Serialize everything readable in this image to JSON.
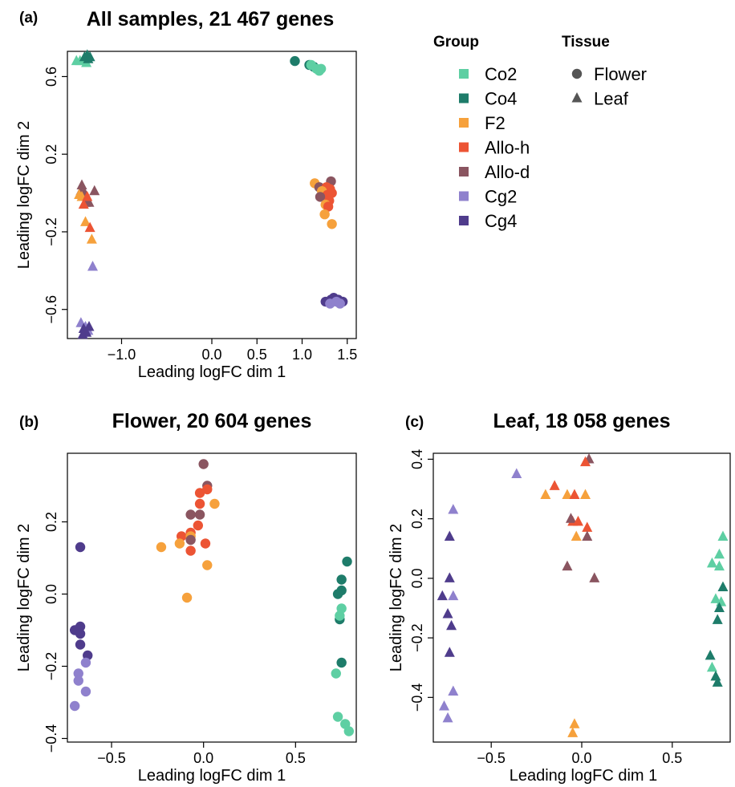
{
  "colors": {
    "Co2": "#5ecfa3",
    "Co4": "#1e7c6a",
    "F2": "#f6a13c",
    "Allo-h": "#ec5434",
    "Allo-d": "#8a5560",
    "Cg2": "#8f81cd",
    "Cg4": "#4f3c8c"
  },
  "legend": {
    "group_title": "Group",
    "groups": [
      "Co2",
      "Co4",
      "F2",
      "Allo-h",
      "Allo-d",
      "Cg2",
      "Cg4"
    ],
    "tissue_title": "Tissue",
    "tissues": [
      {
        "label": "Flower",
        "shape": "circle"
      },
      {
        "label": "Leaf",
        "shape": "triangle"
      }
    ]
  },
  "chart_data": [
    {
      "type": "scatter",
      "panel_label": "(a)",
      "title": "All samples, 21 467 genes",
      "xlabel": "Leading logFC dim 1",
      "ylabel": "Leading logFC dim 2",
      "xlim": [
        -1.6,
        1.6
      ],
      "ylim": [
        -0.75,
        0.73
      ],
      "xticks": [
        -1.0,
        0.0,
        0.5,
        1.0,
        1.5
      ],
      "xtick_labels": [
        "−1.0",
        "0.0",
        "0.5",
        "1.0",
        "1.5"
      ],
      "yticks": [
        -0.6,
        -0.2,
        0.2,
        0.6
      ],
      "ytick_labels": [
        "−0.6",
        "−0.2",
        "0.2",
        "0.6"
      ],
      "points": [
        {
          "g": "Co2",
          "s": "triangle",
          "x": -1.5,
          "y": 0.68
        },
        {
          "g": "Co2",
          "s": "triangle",
          "x": -1.46,
          "y": 0.68
        },
        {
          "g": "Co2",
          "s": "triangle",
          "x": -1.42,
          "y": 0.69
        },
        {
          "g": "Co2",
          "s": "triangle",
          "x": -1.39,
          "y": 0.67
        },
        {
          "g": "Co4",
          "s": "triangle",
          "x": -1.41,
          "y": 0.7
        },
        {
          "g": "Co4",
          "s": "triangle",
          "x": -1.38,
          "y": 0.71
        },
        {
          "g": "Co4",
          "s": "triangle",
          "x": -1.35,
          "y": 0.7
        },
        {
          "g": "Co4",
          "s": "triangle",
          "x": -1.37,
          "y": 0.69
        },
        {
          "g": "Allo-d",
          "s": "triangle",
          "x": -1.44,
          "y": 0.04
        },
        {
          "g": "Allo-d",
          "s": "triangle",
          "x": -1.45,
          "y": 0.01
        },
        {
          "g": "Allo-d",
          "s": "triangle",
          "x": -1.41,
          "y": 0.0
        },
        {
          "g": "Allo-d",
          "s": "triangle",
          "x": -1.3,
          "y": 0.01
        },
        {
          "g": "Allo-d",
          "s": "triangle",
          "x": -1.4,
          "y": -0.05
        },
        {
          "g": "Allo-d",
          "s": "triangle",
          "x": -1.36,
          "y": -0.05
        },
        {
          "g": "F2",
          "s": "triangle",
          "x": -1.47,
          "y": -0.01
        },
        {
          "g": "F2",
          "s": "triangle",
          "x": -1.44,
          "y": -0.02
        },
        {
          "g": "F2",
          "s": "triangle",
          "x": -1.4,
          "y": -0.15
        },
        {
          "g": "F2",
          "s": "triangle",
          "x": -1.33,
          "y": -0.24
        },
        {
          "g": "Allo-h",
          "s": "triangle",
          "x": -1.38,
          "y": -0.02
        },
        {
          "g": "Allo-h",
          "s": "triangle",
          "x": -1.42,
          "y": -0.06
        },
        {
          "g": "Allo-h",
          "s": "triangle",
          "x": -1.35,
          "y": -0.18
        },
        {
          "g": "Cg2",
          "s": "triangle",
          "x": -1.32,
          "y": -0.38
        },
        {
          "g": "Cg2",
          "s": "triangle",
          "x": -1.45,
          "y": -0.67
        },
        {
          "g": "Cg2",
          "s": "triangle",
          "x": -1.4,
          "y": -0.69
        },
        {
          "g": "Cg2",
          "s": "triangle",
          "x": -1.37,
          "y": -0.71
        },
        {
          "g": "Cg4",
          "s": "triangle",
          "x": -1.42,
          "y": -0.7
        },
        {
          "g": "Cg4",
          "s": "triangle",
          "x": -1.39,
          "y": -0.72
        },
        {
          "g": "Cg4",
          "s": "triangle",
          "x": -1.36,
          "y": -0.69
        },
        {
          "g": "Cg4",
          "s": "triangle",
          "x": -1.43,
          "y": -0.73
        },
        {
          "g": "Co4",
          "s": "circle",
          "x": 0.92,
          "y": 0.68
        },
        {
          "g": "Co4",
          "s": "circle",
          "x": 1.08,
          "y": 0.66
        },
        {
          "g": "Co4",
          "s": "circle",
          "x": 1.13,
          "y": 0.65
        },
        {
          "g": "Co2",
          "s": "circle",
          "x": 1.1,
          "y": 0.66
        },
        {
          "g": "Co2",
          "s": "circle",
          "x": 1.16,
          "y": 0.64
        },
        {
          "g": "Co2",
          "s": "circle",
          "x": 1.19,
          "y": 0.63
        },
        {
          "g": "Co2",
          "s": "circle",
          "x": 1.21,
          "y": 0.64
        },
        {
          "g": "F2",
          "s": "circle",
          "x": 1.14,
          "y": 0.05
        },
        {
          "g": "Allo-d",
          "s": "circle",
          "x": 1.19,
          "y": 0.03
        },
        {
          "g": "Allo-d",
          "s": "circle",
          "x": 1.32,
          "y": 0.06
        },
        {
          "g": "Allo-h",
          "s": "circle",
          "x": 1.27,
          "y": 0.03
        },
        {
          "g": "Allo-h",
          "s": "circle",
          "x": 1.31,
          "y": 0.02
        },
        {
          "g": "F2",
          "s": "circle",
          "x": 1.22,
          "y": 0.01
        },
        {
          "g": "Allo-h",
          "s": "circle",
          "x": 1.28,
          "y": -0.01
        },
        {
          "g": "Allo-h",
          "s": "circle",
          "x": 1.33,
          "y": 0.0
        },
        {
          "g": "Allo-d",
          "s": "circle",
          "x": 1.2,
          "y": -0.02
        },
        {
          "g": "Allo-h",
          "s": "circle",
          "x": 1.3,
          "y": -0.04
        },
        {
          "g": "F2",
          "s": "circle",
          "x": 1.26,
          "y": -0.06
        },
        {
          "g": "Allo-h",
          "s": "circle",
          "x": 1.29,
          "y": -0.07
        },
        {
          "g": "F2",
          "s": "circle",
          "x": 1.25,
          "y": -0.11
        },
        {
          "g": "F2",
          "s": "circle",
          "x": 1.33,
          "y": -0.16
        },
        {
          "g": "Cg4",
          "s": "circle",
          "x": 1.26,
          "y": -0.56
        },
        {
          "g": "Cg4",
          "s": "circle",
          "x": 1.32,
          "y": -0.55
        },
        {
          "g": "Cg4",
          "s": "circle",
          "x": 1.35,
          "y": -0.54
        },
        {
          "g": "Cg4",
          "s": "circle",
          "x": 1.4,
          "y": -0.55
        },
        {
          "g": "Cg4",
          "s": "circle",
          "x": 1.45,
          "y": -0.56
        },
        {
          "g": "Cg2",
          "s": "circle",
          "x": 1.31,
          "y": -0.57
        },
        {
          "g": "Cg2",
          "s": "circle",
          "x": 1.38,
          "y": -0.56
        },
        {
          "g": "Cg2",
          "s": "circle",
          "x": 1.42,
          "y": -0.57
        }
      ]
    },
    {
      "type": "scatter",
      "panel_label": "(b)",
      "title": "Flower, 20 604 genes",
      "xlabel": "Leading logFC dim 1",
      "ylabel": "Leading logFC dim 2",
      "xlim": [
        -0.74,
        0.83
      ],
      "ylim": [
        -0.41,
        0.39
      ],
      "xticks": [
        -0.5,
        0.0,
        0.5
      ],
      "xtick_labels": [
        "−0.5",
        "0.0",
        "0.5"
      ],
      "yticks": [
        -0.4,
        -0.2,
        0.0,
        0.2
      ],
      "ytick_labels": [
        "−0.4",
        "−0.2",
        "0.0",
        "0.2"
      ],
      "points": [
        {
          "g": "Allo-d",
          "s": "circle",
          "x": 0.0,
          "y": 0.36
        },
        {
          "g": "Allo-d",
          "s": "circle",
          "x": 0.02,
          "y": 0.3
        },
        {
          "g": "Allo-h",
          "s": "circle",
          "x": 0.02,
          "y": 0.29
        },
        {
          "g": "Allo-h",
          "s": "circle",
          "x": -0.02,
          "y": 0.28
        },
        {
          "g": "F2",
          "s": "circle",
          "x": 0.06,
          "y": 0.25
        },
        {
          "g": "Allo-h",
          "s": "circle",
          "x": -0.02,
          "y": 0.25
        },
        {
          "g": "Allo-d",
          "s": "circle",
          "x": -0.02,
          "y": 0.22
        },
        {
          "g": "Allo-d",
          "s": "circle",
          "x": -0.07,
          "y": 0.22
        },
        {
          "g": "Allo-h",
          "s": "circle",
          "x": -0.03,
          "y": 0.19
        },
        {
          "g": "Allo-h",
          "s": "circle",
          "x": -0.07,
          "y": 0.17
        },
        {
          "g": "Allo-h",
          "s": "circle",
          "x": -0.12,
          "y": 0.16
        },
        {
          "g": "F2",
          "s": "circle",
          "x": -0.07,
          "y": 0.16
        },
        {
          "g": "Allo-d",
          "s": "circle",
          "x": -0.07,
          "y": 0.15
        },
        {
          "g": "F2",
          "s": "circle",
          "x": -0.13,
          "y": 0.14
        },
        {
          "g": "F2",
          "s": "circle",
          "x": -0.23,
          "y": 0.13
        },
        {
          "g": "Allo-h",
          "s": "circle",
          "x": 0.01,
          "y": 0.14
        },
        {
          "g": "Allo-h",
          "s": "circle",
          "x": -0.07,
          "y": 0.12
        },
        {
          "g": "F2",
          "s": "circle",
          "x": 0.02,
          "y": 0.08
        },
        {
          "g": "F2",
          "s": "circle",
          "x": -0.09,
          "y": -0.01
        },
        {
          "g": "Cg4",
          "s": "circle",
          "x": -0.67,
          "y": 0.13
        },
        {
          "g": "Cg4",
          "s": "circle",
          "x": -0.67,
          "y": -0.09
        },
        {
          "g": "Cg4",
          "s": "circle",
          "x": -0.7,
          "y": -0.1
        },
        {
          "g": "Cg4",
          "s": "circle",
          "x": -0.67,
          "y": -0.11
        },
        {
          "g": "Cg4",
          "s": "circle",
          "x": -0.67,
          "y": -0.14
        },
        {
          "g": "Cg4",
          "s": "circle",
          "x": -0.63,
          "y": -0.17
        },
        {
          "g": "Cg2",
          "s": "circle",
          "x": -0.64,
          "y": -0.19
        },
        {
          "g": "Cg2",
          "s": "circle",
          "x": -0.68,
          "y": -0.22
        },
        {
          "g": "Cg2",
          "s": "circle",
          "x": -0.68,
          "y": -0.24
        },
        {
          "g": "Cg2",
          "s": "circle",
          "x": -0.64,
          "y": -0.27
        },
        {
          "g": "Cg2",
          "s": "circle",
          "x": -0.7,
          "y": -0.31
        },
        {
          "g": "Co4",
          "s": "circle",
          "x": 0.78,
          "y": 0.09
        },
        {
          "g": "Co4",
          "s": "circle",
          "x": 0.75,
          "y": 0.04
        },
        {
          "g": "Co4",
          "s": "circle",
          "x": 0.75,
          "y": 0.01
        },
        {
          "g": "Co4",
          "s": "circle",
          "x": 0.73,
          "y": 0.0
        },
        {
          "g": "Co2",
          "s": "circle",
          "x": 0.75,
          "y": -0.04
        },
        {
          "g": "Co4",
          "s": "circle",
          "x": 0.74,
          "y": -0.07
        },
        {
          "g": "Co2",
          "s": "circle",
          "x": 0.74,
          "y": -0.06
        },
        {
          "g": "Co4",
          "s": "circle",
          "x": 0.75,
          "y": -0.19
        },
        {
          "g": "Co2",
          "s": "circle",
          "x": 0.72,
          "y": -0.22
        },
        {
          "g": "Co2",
          "s": "circle",
          "x": 0.73,
          "y": -0.34
        },
        {
          "g": "Co2",
          "s": "circle",
          "x": 0.77,
          "y": -0.36
        },
        {
          "g": "Co2",
          "s": "circle",
          "x": 0.79,
          "y": -0.38
        }
      ]
    },
    {
      "type": "scatter",
      "panel_label": "(c)",
      "title": "Leaf, 18 058 genes",
      "xlabel": "Leading logFC dim 1",
      "ylabel": "Leading logFC dim 2",
      "xlim": [
        -0.82,
        0.82
      ],
      "ylim": [
        -0.55,
        0.42
      ],
      "xticks": [
        -0.5,
        0.0,
        0.5
      ],
      "xtick_labels": [
        "−0.5",
        "0.0",
        "0.5"
      ],
      "yticks": [
        -0.4,
        -0.2,
        0.0,
        0.2,
        0.4
      ],
      "ytick_labels": [
        "−0.4",
        "−0.2",
        "0.0",
        "0.2",
        "0.4"
      ],
      "points": [
        {
          "g": "Allo-d",
          "s": "triangle",
          "x": 0.04,
          "y": 0.4
        },
        {
          "g": "Allo-h",
          "s": "triangle",
          "x": 0.02,
          "y": 0.39
        },
        {
          "g": "Cg2",
          "s": "triangle",
          "x": -0.36,
          "y": 0.35
        },
        {
          "g": "Allo-h",
          "s": "triangle",
          "x": -0.15,
          "y": 0.31
        },
        {
          "g": "F2",
          "s": "triangle",
          "x": -0.2,
          "y": 0.28
        },
        {
          "g": "F2",
          "s": "triangle",
          "x": -0.08,
          "y": 0.28
        },
        {
          "g": "Allo-h",
          "s": "triangle",
          "x": -0.04,
          "y": 0.28
        },
        {
          "g": "F2",
          "s": "triangle",
          "x": 0.02,
          "y": 0.28
        },
        {
          "g": "Allo-h",
          "s": "triangle",
          "x": -0.05,
          "y": 0.19
        },
        {
          "g": "Allo-d",
          "s": "triangle",
          "x": -0.06,
          "y": 0.2
        },
        {
          "g": "Allo-h",
          "s": "triangle",
          "x": -0.02,
          "y": 0.19
        },
        {
          "g": "Allo-h",
          "s": "triangle",
          "x": 0.03,
          "y": 0.17
        },
        {
          "g": "Allo-d",
          "s": "triangle",
          "x": 0.03,
          "y": 0.14
        },
        {
          "g": "F2",
          "s": "triangle",
          "x": -0.03,
          "y": 0.14
        },
        {
          "g": "Allo-d",
          "s": "triangle",
          "x": -0.08,
          "y": 0.04
        },
        {
          "g": "Allo-d",
          "s": "triangle",
          "x": 0.07,
          "y": 0.0
        },
        {
          "g": "F2",
          "s": "triangle",
          "x": -0.04,
          "y": -0.49
        },
        {
          "g": "F2",
          "s": "triangle",
          "x": -0.05,
          "y": -0.52
        },
        {
          "g": "Cg2",
          "s": "triangle",
          "x": -0.71,
          "y": 0.23
        },
        {
          "g": "Cg4",
          "s": "triangle",
          "x": -0.73,
          "y": 0.14
        },
        {
          "g": "Cg4",
          "s": "triangle",
          "x": -0.73,
          "y": 0.0
        },
        {
          "g": "Cg4",
          "s": "triangle",
          "x": -0.77,
          "y": -0.06
        },
        {
          "g": "Cg2",
          "s": "triangle",
          "x": -0.71,
          "y": -0.06
        },
        {
          "g": "Cg4",
          "s": "triangle",
          "x": -0.74,
          "y": -0.12
        },
        {
          "g": "Cg4",
          "s": "triangle",
          "x": -0.72,
          "y": -0.16
        },
        {
          "g": "Cg4",
          "s": "triangle",
          "x": -0.73,
          "y": -0.25
        },
        {
          "g": "Cg2",
          "s": "triangle",
          "x": -0.71,
          "y": -0.38
        },
        {
          "g": "Cg2",
          "s": "triangle",
          "x": -0.76,
          "y": -0.43
        },
        {
          "g": "Cg2",
          "s": "triangle",
          "x": -0.74,
          "y": -0.47
        },
        {
          "g": "Co2",
          "s": "triangle",
          "x": 0.78,
          "y": 0.14
        },
        {
          "g": "Co2",
          "s": "triangle",
          "x": 0.76,
          "y": 0.08
        },
        {
          "g": "Co2",
          "s": "triangle",
          "x": 0.72,
          "y": 0.05
        },
        {
          "g": "Co2",
          "s": "triangle",
          "x": 0.76,
          "y": 0.04
        },
        {
          "g": "Co4",
          "s": "triangle",
          "x": 0.78,
          "y": -0.03
        },
        {
          "g": "Co2",
          "s": "triangle",
          "x": 0.74,
          "y": -0.07
        },
        {
          "g": "Co2",
          "s": "triangle",
          "x": 0.77,
          "y": -0.08
        },
        {
          "g": "Co4",
          "s": "triangle",
          "x": 0.76,
          "y": -0.1
        },
        {
          "g": "Co4",
          "s": "triangle",
          "x": 0.75,
          "y": -0.14
        },
        {
          "g": "Co4",
          "s": "triangle",
          "x": 0.71,
          "y": -0.26
        },
        {
          "g": "Co2",
          "s": "triangle",
          "x": 0.72,
          "y": -0.3
        },
        {
          "g": "Co4",
          "s": "triangle",
          "x": 0.74,
          "y": -0.33
        },
        {
          "g": "Co4",
          "s": "triangle",
          "x": 0.75,
          "y": -0.35
        }
      ]
    }
  ]
}
